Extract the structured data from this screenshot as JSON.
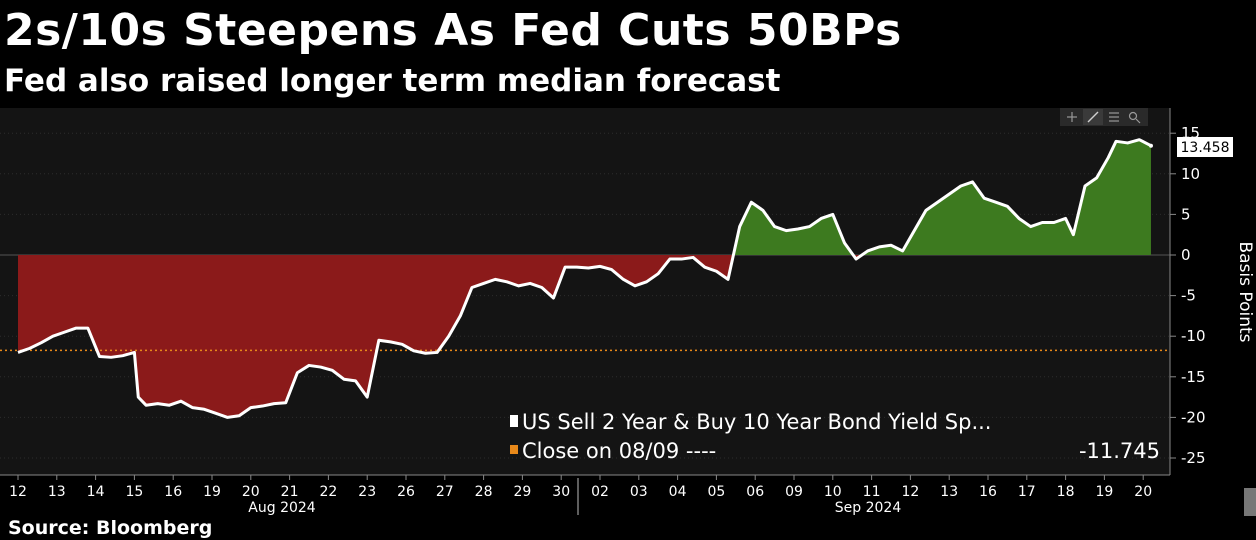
{
  "header": {
    "title": "2s/10s Steepens As Fed Cuts 50BPs",
    "subtitle": "Fed also raised longer term median forecast"
  },
  "footer": {
    "source": "Source: Bloomberg"
  },
  "colors": {
    "positive_fill": "#3d7a1f",
    "negative_fill": "#8b1a1a",
    "line": "#ffffff",
    "reference": "#e8891a",
    "plot_bg": "#141414"
  },
  "toolbar": {
    "icons": [
      "crosshair-icon",
      "line-draw-icon",
      "list-icon",
      "zoom-icon"
    ]
  },
  "chart_data": {
    "type": "area",
    "ylabel": "Basis Points",
    "ylim": [
      -27,
      17
    ],
    "yticks": [
      15,
      10,
      5,
      0,
      -5,
      -10,
      -15,
      -20,
      -25
    ],
    "categories": [
      "12",
      "13",
      "14",
      "15",
      "16",
      "19",
      "20",
      "21",
      "22",
      "23",
      "26",
      "27",
      "28",
      "29",
      "30",
      "02",
      "03",
      "04",
      "05",
      "06",
      "09",
      "10",
      "11",
      "12",
      "13",
      "16",
      "17",
      "18",
      "19",
      "20"
    ],
    "month_labels": [
      "Aug 2024",
      "Sep 2024"
    ],
    "series": [
      {
        "name": "US Sell 2 Year & Buy 10 Year Bond Yield Sp...",
        "last_value": "13.458",
        "x": [
          0,
          0.3,
          0.6,
          0.9,
          1.2,
          1.5,
          1.8,
          2.1,
          2.4,
          2.7,
          3.0,
          3.1,
          3.3,
          3.6,
          3.9,
          4.2,
          4.5,
          4.8,
          5.1,
          5.4,
          5.7,
          6.0,
          6.3,
          6.6,
          6.9,
          7.2,
          7.5,
          7.8,
          8.1,
          8.4,
          8.7,
          9.0,
          9.3,
          9.6,
          9.9,
          10.2,
          10.5,
          10.8,
          11.1,
          11.4,
          11.7,
          12.0,
          12.3,
          12.6,
          12.9,
          13.2,
          13.5,
          13.8,
          14.1,
          14.4,
          14.7,
          15.0,
          15.3,
          15.6,
          15.9,
          16.2,
          16.5,
          16.8,
          17.1,
          17.4,
          17.7,
          18.0,
          18.3,
          18.6,
          18.9,
          19.2,
          19.5,
          19.8,
          20.1,
          20.4,
          20.7,
          21.0,
          21.3,
          21.6,
          21.9,
          22.2,
          22.5,
          22.8,
          23.1,
          23.4,
          23.7,
          24.0,
          24.3,
          24.6,
          24.9,
          25.2,
          25.5,
          25.8,
          26.1,
          26.4,
          26.7,
          27.0,
          27.2,
          27.5,
          27.8,
          28.1,
          28.3,
          28.6,
          28.9,
          29.2
        ],
        "y": [
          -12,
          -11.5,
          -10.8,
          -10,
          -9.5,
          -9,
          -9,
          -12.5,
          -12.6,
          -12.4,
          -12,
          -17.5,
          -18.5,
          -18.3,
          -18.5,
          -18,
          -18.8,
          -19,
          -19.5,
          -20,
          -19.8,
          -18.8,
          -18.6,
          -18.3,
          -18.2,
          -14.5,
          -13.6,
          -13.8,
          -14.2,
          -15.3,
          -15.5,
          -17.5,
          -10.5,
          -10.7,
          -11,
          -11.8,
          -12.1,
          -12,
          -10,
          -7.5,
          -4,
          -3.5,
          -3,
          -3.3,
          -3.8,
          -3.5,
          -4,
          -5.3,
          -1.5,
          -1.5,
          -1.6,
          -1.4,
          -1.8,
          -3,
          -3.8,
          -3.3,
          -2.3,
          -0.5,
          -0.5,
          -0.3,
          -1.5,
          -2,
          -3,
          3.5,
          6.5,
          5.5,
          3.5,
          3,
          3.2,
          3.5,
          4.5,
          5,
          1.5,
          -0.5,
          0.5,
          1,
          1.2,
          0.5,
          3,
          5.5,
          6.5,
          7.5,
          8.5,
          9,
          7,
          6.5,
          6,
          4.5,
          3.5,
          4,
          4,
          4.5,
          2.5,
          8.5,
          9.5,
          12,
          14,
          13.8,
          14.2,
          13.458
        ]
      },
      {
        "name": "Close on 08/09 ----",
        "value": -11.745,
        "value_label": "-11.745"
      }
    ]
  }
}
